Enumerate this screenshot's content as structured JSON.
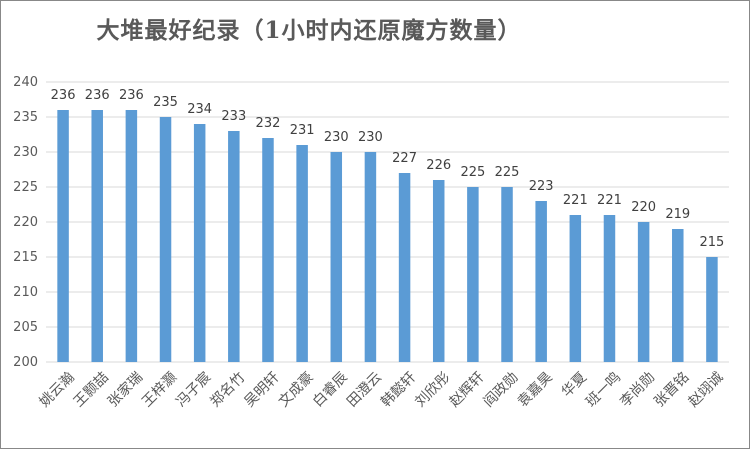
{
  "chart_data": {
    "type": "bar",
    "title": "大堆最好纪录（1小时内还原魔方数量）",
    "categories": [
      "姚云瀚",
      "王颢喆",
      "张家瑞",
      "王梓灏",
      "冯子宸",
      "郑名竹",
      "吴明轩",
      "文成豪",
      "白睿辰",
      "田澄云",
      "韩懿轩",
      "刘欣彤",
      "赵辉轩",
      "阎政勋",
      "袁嘉昊",
      "华夏",
      "班一鸣",
      "李尚勋",
      "张晋铭",
      "赵翊诚"
    ],
    "values": [
      236,
      236,
      236,
      235,
      234,
      233,
      232,
      231,
      230,
      230,
      227,
      226,
      225,
      225,
      223,
      221,
      221,
      220,
      219,
      215
    ],
    "ylim": [
      200,
      240
    ],
    "yticks": [
      200,
      205,
      210,
      215,
      220,
      225,
      230,
      235,
      240
    ],
    "grid": true,
    "bar_color": "#5B9BD5",
    "xlabel": "",
    "ylabel": ""
  }
}
